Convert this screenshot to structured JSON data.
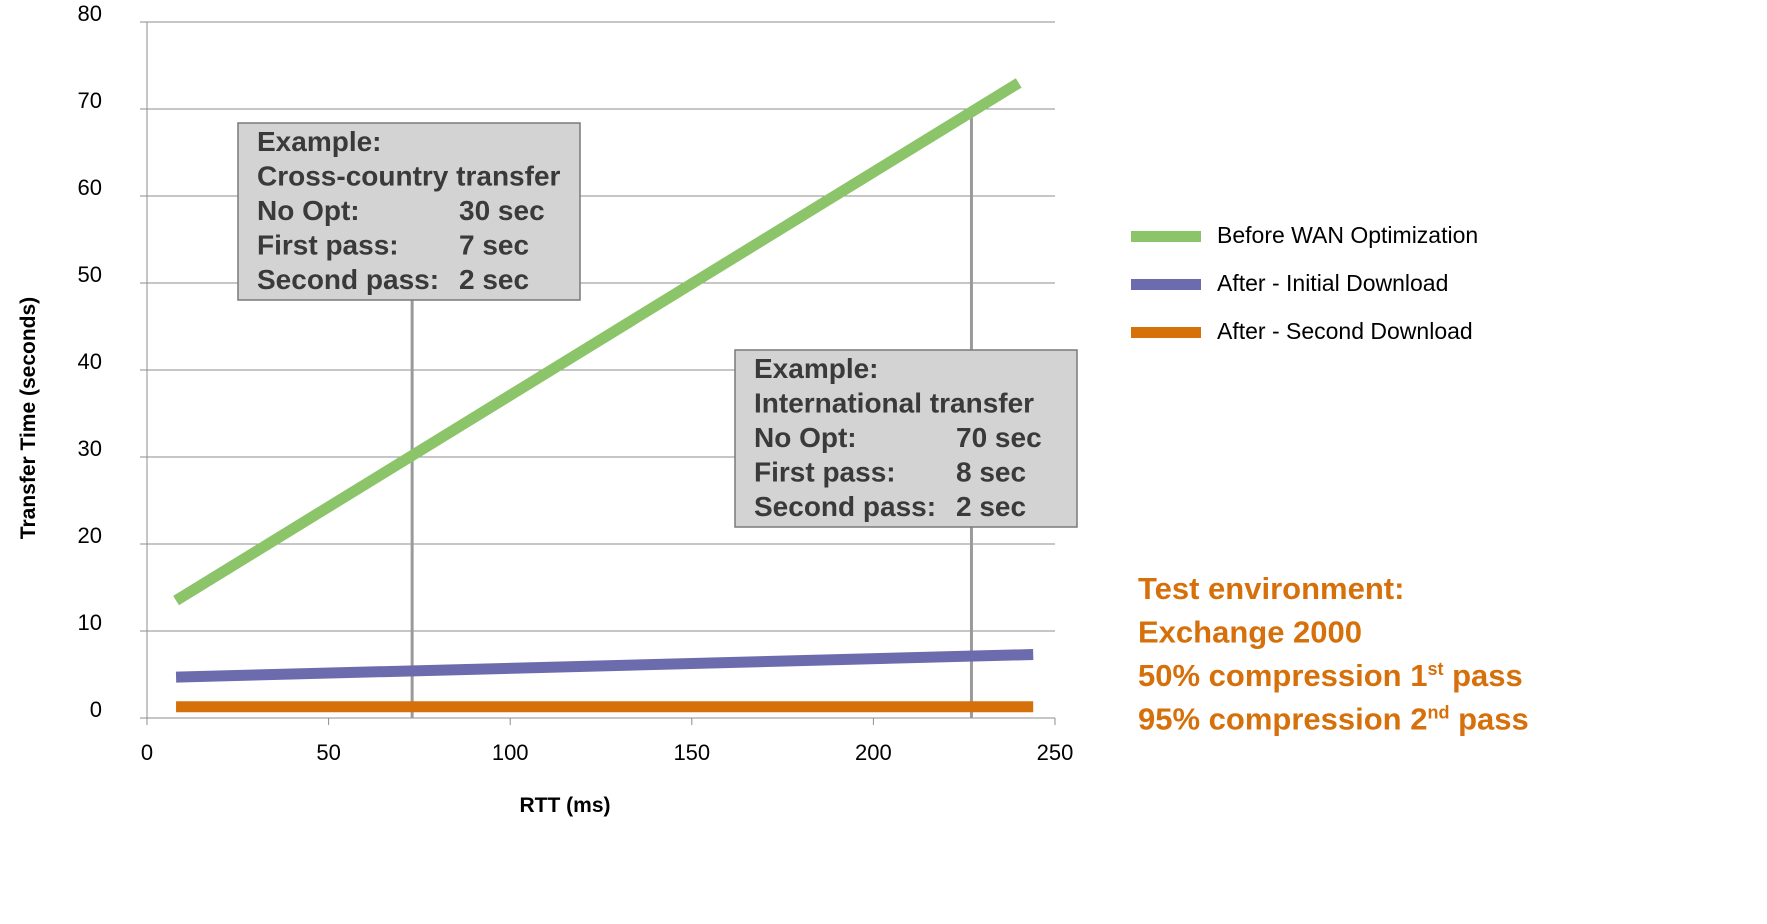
{
  "chart_data": {
    "type": "line",
    "xlabel": "RTT (ms)",
    "ylabel": "Transfer Time (seconds)",
    "xlim": [
      0,
      250
    ],
    "ylim": [
      0,
      80
    ],
    "x_ticks": [
      0,
      50,
      100,
      150,
      200,
      250
    ],
    "y_ticks": [
      0,
      10,
      20,
      30,
      40,
      50,
      60,
      70,
      80
    ],
    "grid": "horizontal",
    "legend_position": "right",
    "series": [
      {
        "name": "Before WAN Optimization",
        "color": "#8cc46a",
        "x": [
          8,
          240
        ],
        "y": [
          13.5,
          73
        ]
      },
      {
        "name": "After - Initial Download",
        "color": "#6b6bad",
        "x": [
          8,
          244
        ],
        "y": [
          4.7,
          7.3
        ]
      },
      {
        "name": "After - Second Download",
        "color": "#d6700b",
        "x": [
          8,
          244
        ],
        "y": [
          1.3,
          1.3
        ]
      }
    ],
    "reference_lines": [
      {
        "x": 73,
        "y_top": 48.5
      },
      {
        "x": 227,
        "y_top": 70
      }
    ],
    "callouts": [
      {
        "lines": [
          {
            "label": "Example:",
            "value": ""
          },
          {
            "label": "Cross-country transfer",
            "value": ""
          },
          {
            "label": "No Opt:",
            "value": "30 sec"
          },
          {
            "label": "First pass:",
            "value": "7 sec"
          },
          {
            "label": "Second pass:",
            "value": "2 sec"
          }
        ]
      },
      {
        "lines": [
          {
            "label": "Example:",
            "value": ""
          },
          {
            "label": "International transfer",
            "value": ""
          },
          {
            "label": "No Opt:",
            "value": "70 sec"
          },
          {
            "label": "First pass:",
            "value": "8 sec"
          },
          {
            "label": "Second pass:",
            "value": "2 sec"
          }
        ]
      }
    ]
  },
  "note": {
    "color": "#d6700b",
    "lines": [
      {
        "text": "Test environment:",
        "sup": "",
        "after": ""
      },
      {
        "text": "Exchange 2000",
        "sup": "",
        "after": ""
      },
      {
        "text": "50% compression 1",
        "sup": "st",
        "after": " pass"
      },
      {
        "text": "95% compression 2",
        "sup": "nd",
        "after": " pass"
      }
    ]
  }
}
